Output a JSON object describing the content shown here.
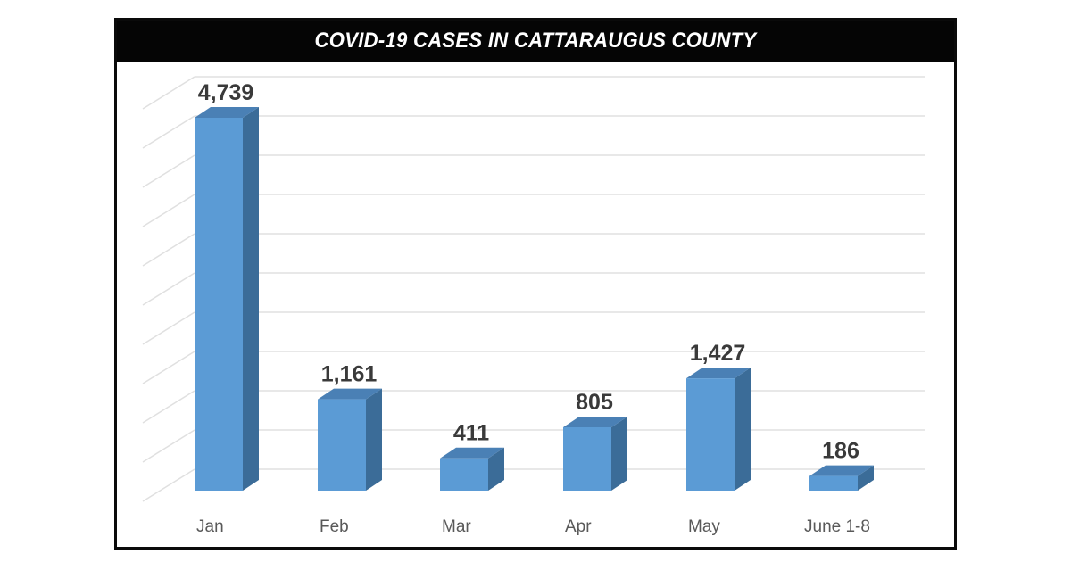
{
  "title": "COVID-19 CASES IN CATTARAUGUS COUNTY",
  "colors": {
    "bar_front": "#5b9bd5",
    "bar_side": "#3b6c98",
    "bar_top": "#4a80b5",
    "gridline": "#e0e0e0",
    "label_text": "#3a3a3a",
    "axis_text": "#595959",
    "title_bg": "#050505",
    "title_text": "#ffffff"
  },
  "bars": [
    {
      "category": "Jan",
      "value": 4739,
      "label": "4,739"
    },
    {
      "category": "Feb",
      "value": 1161,
      "label": "1,161"
    },
    {
      "category": "Mar",
      "value": 411,
      "label": "411"
    },
    {
      "category": "Apr",
      "value": 805,
      "label": "805"
    },
    {
      "category": "May",
      "value": 1427,
      "label": "1,427"
    },
    {
      "category": "June 1-8",
      "value": 186,
      "label": "186"
    }
  ],
  "chart_data": {
    "type": "bar",
    "title": "COVID-19 CASES IN CATTARAUGUS COUNTY",
    "categories": [
      "Jan",
      "Feb",
      "Mar",
      "Apr",
      "May",
      "June 1-8"
    ],
    "values": [
      4739,
      1161,
      411,
      805,
      1427,
      186
    ],
    "data_labels": [
      "4,739",
      "1,161",
      "411",
      "805",
      "1,427",
      "186"
    ],
    "xlabel": "",
    "ylabel": "",
    "ylim": [
      0,
      5000
    ],
    "grid": true,
    "style": "3d-column",
    "legend": "none"
  }
}
